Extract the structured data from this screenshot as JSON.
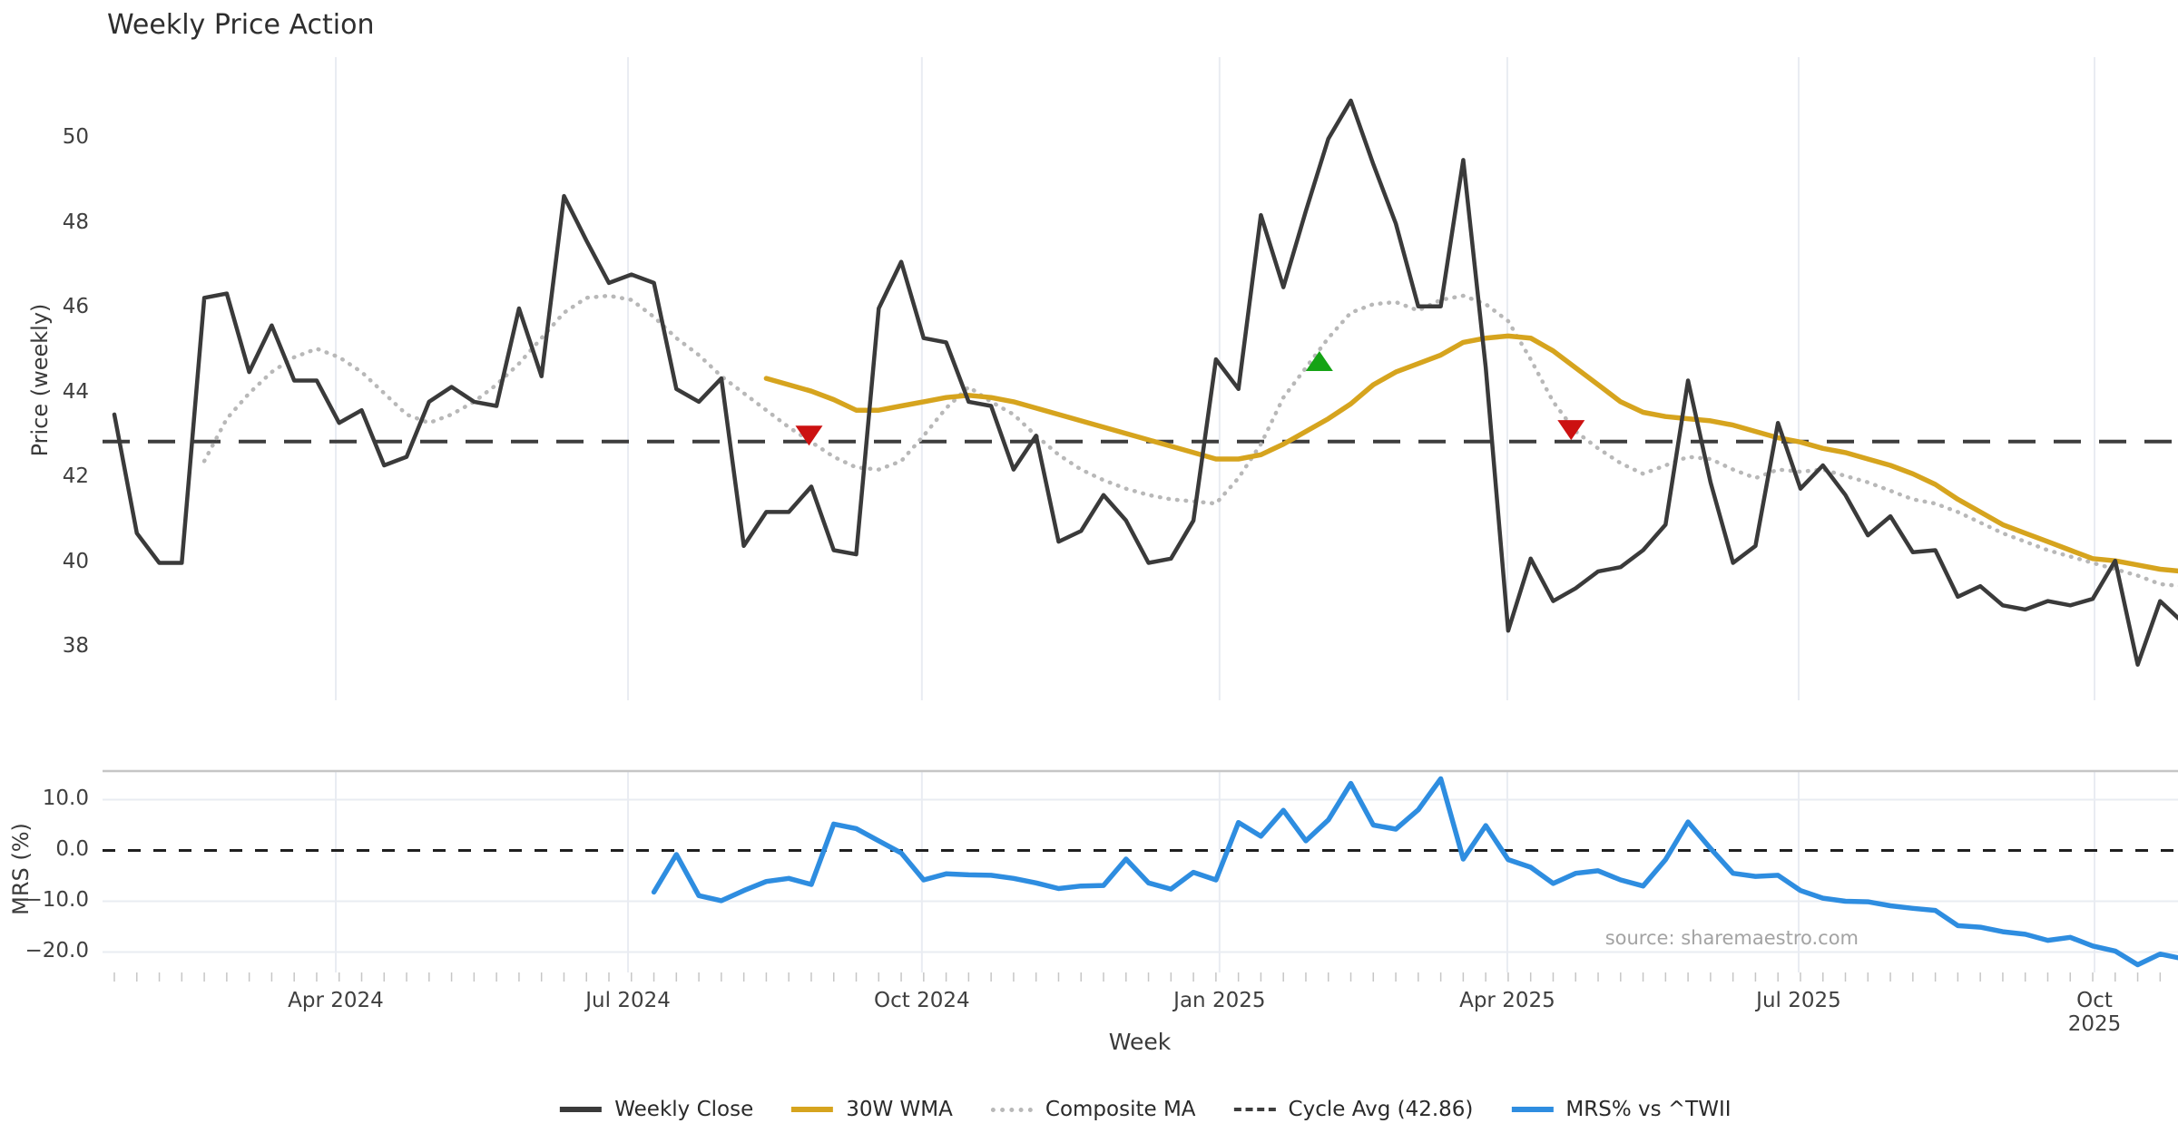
{
  "title": "Weekly Price Action",
  "source_note": "source: sharemaestro.com",
  "colors": {
    "weekly_close": "#3a3a3a",
    "wma_30w": "#d6a41e",
    "composite_ma": "#b8b8b8",
    "cycle_avg": "#3d3d3d",
    "mrs": "#2e8de0",
    "buy": "#15a315",
    "sell": "#cc1111",
    "gridline": "#e9ecf2",
    "panel_spine": "#c6c6c6",
    "zero_line": "#1f1f1f"
  },
  "x_axis": {
    "label": "Week",
    "weeks_total": 93,
    "ticks": [
      {
        "label": "Apr 2024",
        "week": 9.85
      },
      {
        "label": "Jul 2024",
        "week": 22.85
      },
      {
        "label": "Oct 2024",
        "week": 35.92
      },
      {
        "label": "Jan 2025",
        "week": 49.16
      },
      {
        "label": "Apr 2025",
        "week": 61.96
      },
      {
        "label": "Jul 2025",
        "week": 74.92
      },
      {
        "label": "Oct 2025",
        "week": 88.08
      }
    ]
  },
  "chart_data": [
    {
      "type": "line",
      "panel": "price",
      "ylabel": "Price (weekly)",
      "ylim": [
        36.7,
        51.9
      ],
      "grid": "vertical-only",
      "yticks": [
        {
          "value": 50,
          "label": "50"
        },
        {
          "value": 48,
          "label": "48"
        },
        {
          "value": 46,
          "label": "46"
        },
        {
          "value": 44,
          "label": "44"
        },
        {
          "value": 42,
          "label": "42"
        },
        {
          "value": 40,
          "label": "40"
        },
        {
          "value": 38,
          "label": "38"
        }
      ],
      "cycle_avg": {
        "value": 42.86,
        "style": "dashed",
        "color_key": "cycle_avg"
      },
      "series": [
        {
          "name": "Weekly Close",
          "style": "solid",
          "width": 4.5,
          "color_key": "weekly_close",
          "start_week": 0,
          "values": [
            43.5,
            40.7,
            40.0,
            40.0,
            46.25,
            46.35,
            44.5,
            45.6,
            44.3,
            44.3,
            43.3,
            43.6,
            42.3,
            42.5,
            43.8,
            44.15,
            43.8,
            43.7,
            46.0,
            44.4,
            48.65,
            47.6,
            46.6,
            46.8,
            46.6,
            44.1,
            43.8,
            44.35,
            40.4,
            41.2,
            41.2,
            41.8,
            40.3,
            40.2,
            46.0,
            47.1,
            45.3,
            45.2,
            43.8,
            43.7,
            42.2,
            43.0,
            40.5,
            40.75,
            41.6,
            41.0,
            40.0,
            40.1,
            41.0,
            44.8,
            44.1,
            48.2,
            46.5,
            48.3,
            50.0,
            50.9,
            49.4,
            48.0,
            46.05,
            46.05,
            49.5,
            44.6,
            38.4,
            40.1,
            39.1,
            39.4,
            39.8,
            39.9,
            40.3,
            40.9,
            44.3,
            41.9,
            40.0,
            40.4,
            43.3,
            41.75,
            42.3,
            41.6,
            40.65,
            41.1,
            40.25,
            40.3,
            39.2,
            39.45,
            39.0,
            38.9,
            39.1,
            39.0,
            39.15,
            40.05,
            37.6,
            39.1,
            38.6
          ]
        },
        {
          "name": "30W WMA",
          "style": "solid",
          "width": 5.5,
          "color_key": "wma_30w",
          "start_week": 29,
          "values": [
            44.35,
            44.2,
            44.05,
            43.85,
            43.6,
            43.6,
            43.7,
            43.8,
            43.9,
            43.95,
            43.9,
            43.8,
            43.65,
            43.5,
            43.35,
            43.2,
            43.05,
            42.9,
            42.75,
            42.6,
            42.45,
            42.45,
            42.55,
            42.8,
            43.1,
            43.4,
            43.75,
            44.2,
            44.5,
            44.7,
            44.9,
            45.2,
            45.3,
            45.35,
            45.3,
            45.0,
            44.6,
            44.2,
            43.8,
            43.55,
            43.45,
            43.4,
            43.35,
            43.25,
            43.1,
            42.95,
            42.85,
            42.7,
            42.6,
            42.45,
            42.3,
            42.1,
            41.85,
            41.5,
            41.2,
            40.9,
            40.7,
            40.5,
            40.3,
            40.1,
            40.05,
            39.95,
            39.85,
            39.8
          ]
        },
        {
          "name": "Composite MA",
          "style": "dotted",
          "width": 4.5,
          "color_key": "composite_ma",
          "start_week": 4,
          "values": [
            42.4,
            43.4,
            44.0,
            44.5,
            44.85,
            45.05,
            44.85,
            44.5,
            44.0,
            43.5,
            43.3,
            43.5,
            43.8,
            44.2,
            44.7,
            45.3,
            45.9,
            46.25,
            46.3,
            46.2,
            45.8,
            45.3,
            44.9,
            44.4,
            44.0,
            43.6,
            43.2,
            42.85,
            42.5,
            42.25,
            42.2,
            42.4,
            43.0,
            43.65,
            44.15,
            43.8,
            43.5,
            43.0,
            42.55,
            42.2,
            41.95,
            41.75,
            41.6,
            41.5,
            41.45,
            41.4,
            42.0,
            42.8,
            43.9,
            44.6,
            45.3,
            45.9,
            46.1,
            46.15,
            45.95,
            46.2,
            46.3,
            46.1,
            45.7,
            44.8,
            43.8,
            43.1,
            42.7,
            42.35,
            42.1,
            42.3,
            42.5,
            42.45,
            42.2,
            42.0,
            42.2,
            42.15,
            42.2,
            42.05,
            41.9,
            41.7,
            41.5,
            41.4,
            41.2,
            40.95,
            40.7,
            40.5,
            40.3,
            40.15,
            40.0,
            39.85,
            39.7,
            39.5,
            39.45
          ]
        }
      ],
      "markers": [
        {
          "shape": "triangle-down",
          "week": 30.9,
          "value": 43.0,
          "color_key": "sell"
        },
        {
          "shape": "triangle-up",
          "week": 53.6,
          "value": 44.76,
          "color_key": "buy"
        },
        {
          "shape": "triangle-down",
          "week": 64.8,
          "value": 43.13,
          "color_key": "sell"
        }
      ]
    },
    {
      "type": "line",
      "panel": "mrs",
      "ylabel": "MRS (%)",
      "ylim": [
        -24.0,
        15.6
      ],
      "grid": "both",
      "hgridlines": [
        10,
        -10,
        -20
      ],
      "zero_line": 0,
      "yticks": [
        {
          "value": 10,
          "label": "10.0"
        },
        {
          "value": 0,
          "label": "0.0"
        },
        {
          "value": -10,
          "label": "−10.0"
        },
        {
          "value": -20,
          "label": "−20.0"
        }
      ],
      "series": [
        {
          "name": "MRS% vs ^TWII",
          "style": "solid",
          "width": 5.5,
          "color_key": "mrs",
          "start_week": 24,
          "values": [
            -8.2,
            -0.8,
            -8.9,
            -9.9,
            -7.9,
            -6.1,
            -5.5,
            -6.7,
            5.2,
            4.3,
            1.9,
            -0.5,
            -5.8,
            -4.6,
            -4.8,
            -4.9,
            -5.5,
            -6.4,
            -7.5,
            -7.0,
            -6.9,
            -1.7,
            -6.4,
            -7.6,
            -4.3,
            -5.8,
            5.5,
            2.8,
            7.9,
            1.9,
            6.0,
            13.2,
            5.0,
            4.2,
            8.0,
            14.1,
            -1.7,
            4.9,
            -1.8,
            -3.3,
            -6.5,
            -4.5,
            -4.0,
            -5.8,
            -7.0,
            -1.8,
            5.6,
            0.4,
            -4.5,
            -5.1,
            -4.9,
            -7.9,
            -9.4,
            -10.0,
            -10.1,
            -10.9,
            -11.4,
            -11.8,
            -14.8,
            -15.1,
            -16.0,
            -16.5,
            -17.7,
            -17.1,
            -18.8,
            -19.8,
            -22.5,
            -20.4,
            -21.3
          ]
        }
      ]
    }
  ],
  "legend": [
    {
      "label": "Weekly Close",
      "swatch": "solid",
      "color_key": "weekly_close",
      "thickness": 6
    },
    {
      "label": "30W WMA",
      "swatch": "solid",
      "color_key": "wma_30w",
      "thickness": 6
    },
    {
      "label": "Composite MA",
      "swatch": "dotted",
      "color_key": "composite_ma",
      "thickness": 5
    },
    {
      "label": "Cycle Avg (42.86)",
      "swatch": "dashed",
      "color_key": "cycle_avg",
      "thickness": 4
    },
    {
      "label": "MRS% vs ^TWII",
      "swatch": "solid",
      "color_key": "mrs",
      "thickness": 6
    }
  ]
}
